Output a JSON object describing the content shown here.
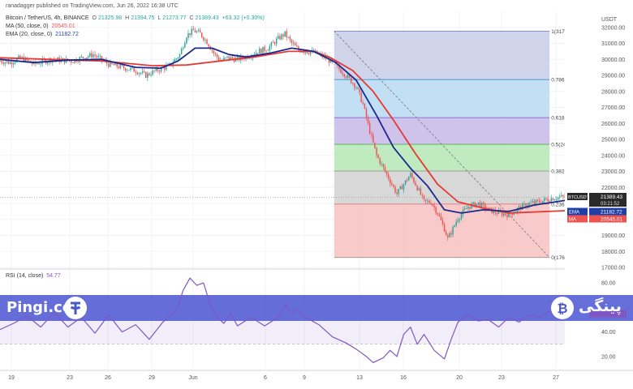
{
  "publisher_line": "ranadagger published on TradingView.com, Jun 26, 2022 16:38 UTC",
  "legend": {
    "symbol": "Bitcoin / TetherUS, 4h, BINANCE",
    "open_label": "O",
    "open": "21325.98",
    "high_label": "H",
    "high": "21394.75",
    "low_label": "L",
    "low": "21273.77",
    "close_label": "C",
    "close": "21389.43",
    "change": "+63.32 (+0.30%)",
    "ma_label": "MA (50, close, 0)",
    "ma_value": "20545.01",
    "ema_label": "EMA (20, close, 0)",
    "ema_value": "21182.72"
  },
  "rsi_label": "RSI (14, close)",
  "rsi_value": "54.77",
  "watermark": {
    "left": "Pingi.co",
    "right": "پینگی"
  },
  "colors": {
    "candle_up": "#26a69a",
    "candle_down": "#ef5350",
    "ema": "#1a2a8c",
    "ma": "#e53935",
    "rsi": "#7e57c2",
    "fib_0_236": "#f7c1c1",
    "fib_236_382": "#d1d1d1",
    "fib_382_5": "#b5e8b5",
    "fib_5_618": "#c8b8e8",
    "fib_618_786": "#b9d9f2",
    "fib_786_1": "#c8cce8",
    "price_tag": "#2a2a2a",
    "ema_tag": "#1e3fa8",
    "ma_tag": "#ef5350"
  },
  "chart_data": [
    {
      "type": "candlestick",
      "title": "Bitcoin / TetherUS, 4h, BINANCE",
      "y_unit": "USDT",
      "ylim": [
        17000,
        33000
      ],
      "y_ticks": [
        "32000.00",
        "31000.00",
        "30000.00",
        "29000.00",
        "28000.00",
        "27000.00",
        "26000.00",
        "25000.00",
        "24000.00",
        "23000.00",
        "22000.00",
        "21000.00",
        "20000.00",
        "19000.00",
        "18000.00",
        "17000.00"
      ],
      "x_ticks": [
        "19",
        "23",
        "26",
        "29",
        "Jun",
        "6",
        "9",
        "13",
        "16",
        "20",
        "23",
        "27"
      ],
      "price_path_4h": [
        [
          0,
          29900
        ],
        [
          6,
          29800
        ],
        [
          12,
          30100
        ],
        [
          20,
          29700
        ],
        [
          30,
          30000
        ],
        [
          42,
          29900
        ],
        [
          55,
          30300
        ],
        [
          64,
          29700
        ],
        [
          72,
          29500
        ],
        [
          80,
          29300
        ],
        [
          86,
          29000
        ],
        [
          92,
          29300
        ],
        [
          100,
          29600
        ],
        [
          106,
          30300
        ],
        [
          110,
          31500
        ],
        [
          114,
          31800
        ],
        [
          118,
          31600
        ],
        [
          122,
          31100
        ],
        [
          126,
          30400
        ],
        [
          130,
          29900
        ],
        [
          134,
          30100
        ],
        [
          140,
          30000
        ],
        [
          146,
          30200
        ],
        [
          152,
          30500
        ],
        [
          158,
          30700
        ],
        [
          164,
          31300
        ],
        [
          168,
          31600
        ],
        [
          172,
          31000
        ],
        [
          176,
          30600
        ],
        [
          180,
          30500
        ],
        [
          186,
          30400
        ],
        [
          192,
          30100
        ],
        [
          198,
          29600
        ],
        [
          204,
          29000
        ],
        [
          210,
          28300
        ],
        [
          214,
          27200
        ],
        [
          218,
          25500
        ],
        [
          222,
          24000
        ],
        [
          226,
          23200
        ],
        [
          230,
          22400
        ],
        [
          234,
          21600
        ],
        [
          238,
          22200
        ],
        [
          242,
          22800
        ],
        [
          246,
          22000
        ],
        [
          250,
          21100
        ],
        [
          254,
          21100
        ],
        [
          258,
          20400
        ],
        [
          262,
          19400
        ],
        [
          264,
          18800
        ],
        [
          266,
          19200
        ],
        [
          270,
          20100
        ],
        [
          276,
          20800
        ],
        [
          282,
          21000
        ],
        [
          288,
          20600
        ],
        [
          294,
          20400
        ],
        [
          300,
          20300
        ],
        [
          306,
          20700
        ],
        [
          312,
          21000
        ],
        [
          318,
          21100
        ],
        [
          324,
          21300
        ],
        [
          330,
          21400
        ],
        [
          333,
          21389.43
        ]
      ],
      "ema20": [
        [
          0,
          30000
        ],
        [
          20,
          29800
        ],
        [
          40,
          29950
        ],
        [
          60,
          30000
        ],
        [
          80,
          29500
        ],
        [
          95,
          29450
        ],
        [
          105,
          29900
        ],
        [
          115,
          30700
        ],
        [
          125,
          30700
        ],
        [
          135,
          30300
        ],
        [
          145,
          30150
        ],
        [
          160,
          30400
        ],
        [
          172,
          30700
        ],
        [
          185,
          30500
        ],
        [
          198,
          29800
        ],
        [
          210,
          28700
        ],
        [
          222,
          26500
        ],
        [
          232,
          24500
        ],
        [
          242,
          23200
        ],
        [
          252,
          22100
        ],
        [
          262,
          20600
        ],
        [
          272,
          20400
        ],
        [
          285,
          20600
        ],
        [
          300,
          20500
        ],
        [
          315,
          20900
        ],
        [
          333,
          21182.72
        ]
      ],
      "ma50": [
        [
          0,
          30100
        ],
        [
          30,
          30000
        ],
        [
          60,
          29900
        ],
        [
          90,
          29600
        ],
        [
          110,
          29650
        ],
        [
          130,
          29900
        ],
        [
          150,
          30150
        ],
        [
          170,
          30500
        ],
        [
          185,
          30500
        ],
        [
          195,
          30100
        ],
        [
          208,
          29300
        ],
        [
          220,
          28000
        ],
        [
          232,
          26200
        ],
        [
          245,
          24100
        ],
        [
          258,
          22200
        ],
        [
          270,
          21100
        ],
        [
          285,
          20700
        ],
        [
          300,
          20400
        ],
        [
          333,
          20545.01
        ]
      ],
      "fibonacci": {
        "x_start": 197,
        "x_end": 324,
        "levels": [
          {
            "ratio": "1",
            "price": "31765.00"
          },
          {
            "ratio": "0.786",
            "price": "28738.40"
          },
          {
            "ratio": "0.618",
            "price": "26362.37"
          },
          {
            "ratio": "0.5",
            "price": "24693.50"
          },
          {
            "ratio": "0.382",
            "price": "23024.63"
          },
          {
            "ratio": "0.236",
            "price": "20959.75"
          },
          {
            "ratio": "0",
            "price": "17622.00"
          }
        ],
        "shown_labels": [
          "1(31765.00)",
          "0.786(28738.40)",
          "0.618(26362.37)",
          "0.5(24693.50)",
          "0.382(23024.63)",
          "0.236(20959.75)",
          "0(17622.00)"
        ]
      },
      "price_tags": [
        {
          "label": "BTCUSDT",
          "value": "21389.43",
          "sub": "03:21:52"
        },
        {
          "label": "EMA",
          "value": "21182.72"
        },
        {
          "label": "MA",
          "value": "20545.01"
        }
      ]
    },
    {
      "type": "line",
      "title": "RSI (14, close)",
      "ylim": [
        10,
        90
      ],
      "y_ticks": [
        "80.00",
        "60.00",
        "40.00",
        "20.00"
      ],
      "band": [
        30,
        70
      ],
      "rsi_path": [
        [
          0,
          42
        ],
        [
          8,
          47
        ],
        [
          16,
          53
        ],
        [
          24,
          44
        ],
        [
          32,
          56
        ],
        [
          40,
          44
        ],
        [
          48,
          52
        ],
        [
          56,
          39
        ],
        [
          64,
          54
        ],
        [
          72,
          40
        ],
        [
          80,
          46
        ],
        [
          88,
          34
        ],
        [
          96,
          48
        ],
        [
          104,
          58
        ],
        [
          108,
          74
        ],
        [
          112,
          84
        ],
        [
          116,
          78
        ],
        [
          120,
          80
        ],
        [
          124,
          62
        ],
        [
          128,
          52
        ],
        [
          132,
          47
        ],
        [
          136,
          55
        ],
        [
          140,
          45
        ],
        [
          148,
          52
        ],
        [
          156,
          45
        ],
        [
          164,
          52
        ],
        [
          168,
          62
        ],
        [
          172,
          56
        ],
        [
          176,
          58
        ],
        [
          180,
          52
        ],
        [
          188,
          46
        ],
        [
          196,
          36
        ],
        [
          204,
          31
        ],
        [
          210,
          26
        ],
        [
          216,
          20
        ],
        [
          220,
          15
        ],
        [
          226,
          19
        ],
        [
          230,
          25
        ],
        [
          234,
          20
        ],
        [
          238,
          38
        ],
        [
          242,
          44
        ],
        [
          246,
          30
        ],
        [
          250,
          38
        ],
        [
          256,
          25
        ],
        [
          262,
          18
        ],
        [
          266,
          34
        ],
        [
          270,
          48
        ],
        [
          276,
          54
        ],
        [
          282,
          49
        ],
        [
          288,
          50
        ],
        [
          294,
          44
        ],
        [
          300,
          52
        ],
        [
          306,
          48
        ],
        [
          312,
          54
        ],
        [
          318,
          52
        ],
        [
          324,
          57
        ],
        [
          330,
          51
        ],
        [
          333,
          54.77
        ]
      ]
    }
  ]
}
